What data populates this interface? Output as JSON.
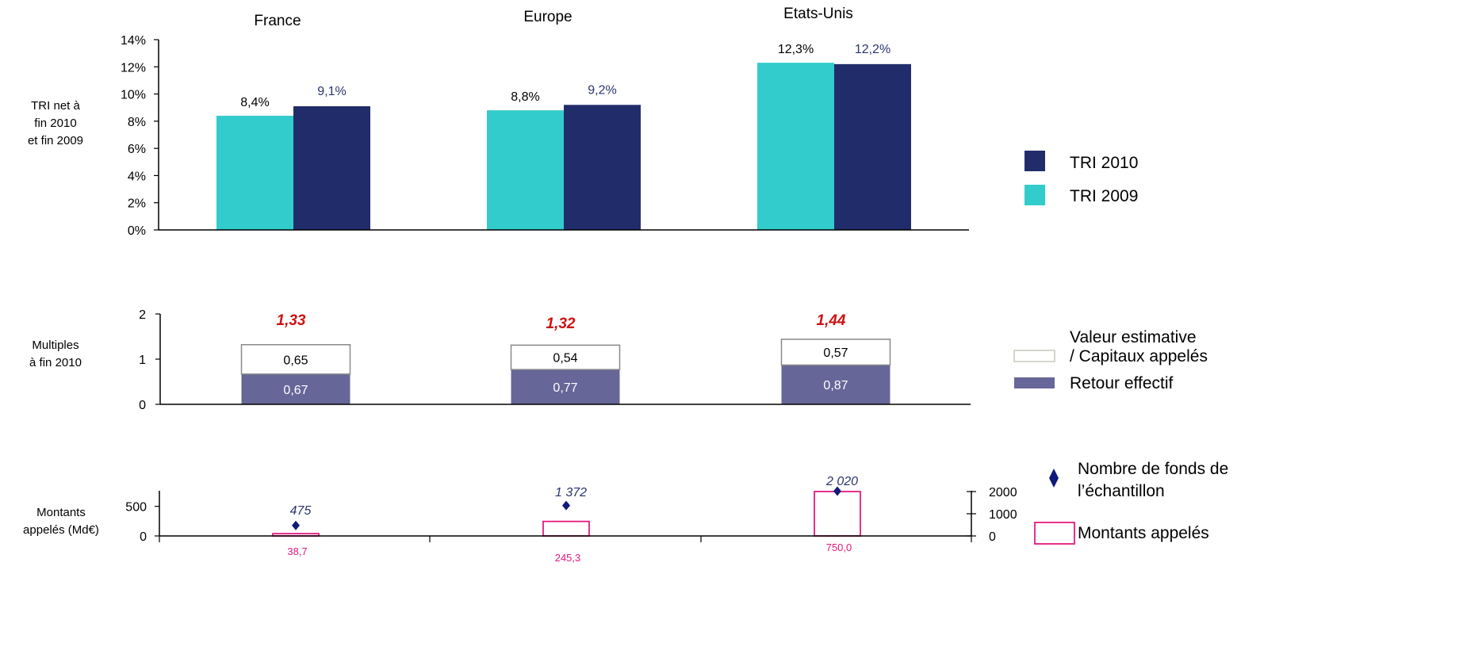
{
  "colors": {
    "tri2010": "#212d6b",
    "tri2009": "#33cccc",
    "retour": "#676699",
    "valeur_fill": "#ffffff",
    "valeur_stroke": "#8a8a8a",
    "multiple_total": "#cc1111",
    "fonds_marker": "#101a7a",
    "montants_stroke": "#e5197f",
    "montants_label": "#e5197f",
    "fonds_label": "#2b3470",
    "tri2010_label": "#2b3470",
    "axis": "#000000"
  },
  "chart_data": [
    {
      "type": "bar",
      "id": "tri",
      "ylabel": "TRI net à fin 2010 et fin 2009",
      "ylabel_lines": [
        "TRI net à",
        "fin 2010",
        "et fin 2009"
      ],
      "categories": [
        "France",
        "Europe",
        "Etats-Unis"
      ],
      "series": [
        {
          "name": "TRI 2009",
          "values": [
            8.4,
            8.8,
            12.3
          ],
          "labels": [
            "8,4%",
            "8,8%",
            "12,3%"
          ]
        },
        {
          "name": "TRI 2010",
          "values": [
            9.1,
            9.2,
            12.2
          ],
          "labels": [
            "9,1%",
            "9,2%",
            "12,2%"
          ]
        }
      ],
      "ylim": [
        0,
        14
      ],
      "yticks": [
        0,
        2,
        4,
        6,
        8,
        10,
        12,
        14
      ],
      "ytick_labels": [
        "0%",
        "2%",
        "4%",
        "6%",
        "8%",
        "10%",
        "12%",
        "14%"
      ],
      "legend": [
        "TRI 2010",
        "TRI 2009"
      ]
    },
    {
      "type": "bar",
      "stacked": true,
      "id": "multiples",
      "ylabel": "Multiples à fin 2010",
      "ylabel_lines": [
        "Multiples",
        "à fin 2010"
      ],
      "categories": [
        "France",
        "Europe",
        "Etats-Unis"
      ],
      "series": [
        {
          "name": "Retour effectif",
          "values": [
            0.67,
            0.77,
            0.87
          ],
          "labels": [
            "0,67",
            "0,77",
            "0,87"
          ]
        },
        {
          "name": "Valeur estimative / Capitaux appelés",
          "values": [
            0.65,
            0.54,
            0.57
          ],
          "labels": [
            "0,65",
            "0,54",
            "0,57"
          ]
        }
      ],
      "totals": [
        1.33,
        1.32,
        1.44
      ],
      "total_labels": [
        "1,33",
        "1,32",
        "1,44"
      ],
      "ylim": [
        0,
        2
      ],
      "yticks": [
        0,
        1,
        2
      ],
      "ytick_labels": [
        "0",
        "1",
        "2"
      ],
      "legend": [
        "Valeur estimative",
        "/ Capitaux  appelés",
        "Retour effectif"
      ]
    },
    {
      "type": "bar",
      "id": "montants",
      "ylabel": "Montants appelés (Md€)",
      "ylabel_lines": [
        "Montants",
        "appelés (Md€)"
      ],
      "categories": [
        "France",
        "Europe",
        "Etats-Unis"
      ],
      "series": [
        {
          "name": "Montants appelés",
          "values": [
            38.7,
            245.3,
            750.0
          ],
          "labels": [
            "38,7",
            "245,3",
            "750,0"
          ],
          "axis": "left"
        },
        {
          "name": "Nombre de fonds de l’échantillon",
          "type": "scatter",
          "values": [
            475,
            1372,
            2020
          ],
          "labels": [
            "475",
            "1 372",
            "2 020"
          ],
          "axis": "right"
        }
      ],
      "ylim_left": [
        0,
        750
      ],
      "yticks_left": [
        0,
        500
      ],
      "ytick_labels_left": [
        "0",
        "500"
      ],
      "ylim_right": [
        0,
        2000
      ],
      "yticks_right": [
        0,
        1000,
        2000
      ],
      "ytick_labels_right": [
        "0",
        "1000",
        "2000"
      ],
      "legend": [
        "Nombre de fonds de",
        "l’échantillon",
        "Montants appelés"
      ]
    }
  ]
}
